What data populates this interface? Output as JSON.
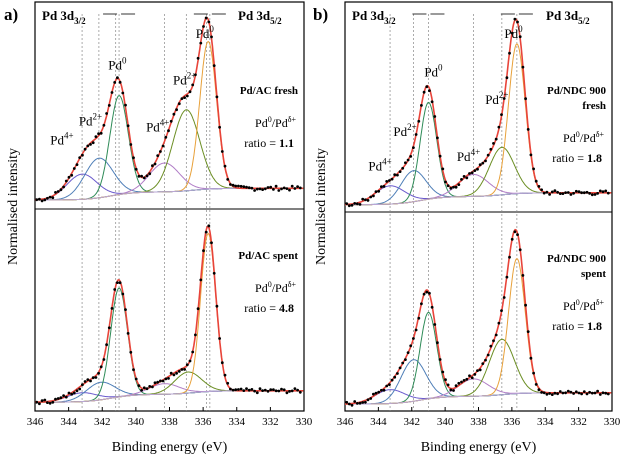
{
  "chart_data": [
    {
      "panel_label": "a)",
      "type": "line",
      "xlabel": "Binding energy (eV)",
      "ylabel": "Normalised intensity",
      "xlim": [
        346,
        330
      ],
      "xticks": [
        "346",
        "344",
        "342",
        "340",
        "338",
        "336",
        "334",
        "332",
        "330"
      ],
      "region_labels": {
        "left_main": "Pd 3d",
        "left_sub": "3/2",
        "right_main": "Pd 3d",
        "right_sub": "5/2"
      },
      "reference_lines_eV": [
        343.2,
        342.2,
        341.2,
        341.0,
        338.3,
        337.0,
        335.8,
        335.6
      ],
      "subplots": [
        {
          "sample": "Pd/AC fresh",
          "sample_lines": [
            "Pd/AC fresh"
          ],
          "ratio_label_main": "Pd",
          "ratio_label_sup1": "0",
          "ratio_label_mid": "/Pd",
          "ratio_label_sup2": "δ+",
          "ratio_word": "ratio = ",
          "ratio_value": "1.1",
          "peak_labels": [
            {
              "base": "Pd",
              "sup": "4+",
              "eV": 344.4
            },
            {
              "base": "Pd",
              "sup": "2+",
              "eV": 342.7
            },
            {
              "base": "Pd",
              "sup": "0",
              "eV": 341.1
            },
            {
              "base": "Pd",
              "sup": "4+",
              "eV": 338.7
            },
            {
              "base": "Pd",
              "sup": "2+",
              "eV": 337.1
            },
            {
              "base": "Pd",
              "sup": "0",
              "eV": 335.9
            }
          ],
          "ylim": [
            0,
            1.15
          ],
          "baseline": 0.05,
          "components": [
            {
              "name": "Pd4+ 3d3/2",
              "color": "#6a5acd",
              "center": 343.2,
              "amp": 0.14,
              "sigma": 0.9
            },
            {
              "name": "Pd2+ 3d3/2",
              "color": "#4f7fb8",
              "center": 342.2,
              "amp": 0.22,
              "sigma": 0.85
            },
            {
              "name": "Pd0 3d3/2",
              "color": "#2e8b57",
              "center": 341.0,
              "amp": 0.55,
              "sigma": 0.55
            },
            {
              "name": "Pd4+ 3d5/2",
              "color": "#b07cc6",
              "center": 338.3,
              "amp": 0.16,
              "sigma": 0.9
            },
            {
              "name": "Pd2+ 3d5/2",
              "color": "#6b8e23",
              "center": 337.0,
              "amp": 0.45,
              "sigma": 0.8
            },
            {
              "name": "Pd0 3d5/2",
              "color": "#e8a13a",
              "center": 335.7,
              "amp": 0.82,
              "sigma": 0.5
            }
          ]
        },
        {
          "sample": "Pd/AC spent",
          "sample_lines": [
            "Pd/AC spent"
          ],
          "ratio_label_main": "Pd",
          "ratio_label_sup1": "0",
          "ratio_label_mid": "/Pd",
          "ratio_label_sup2": "δ+",
          "ratio_word": "ratio = ",
          "ratio_value": "4.8",
          "peak_labels": [],
          "ylim": [
            0,
            1.15
          ],
          "baseline": 0.05,
          "components": [
            {
              "name": "Pd4+ 3d3/2",
              "color": "#6a5acd",
              "center": 343.2,
              "amp": 0.05,
              "sigma": 0.9
            },
            {
              "name": "Pd2+ 3d3/2",
              "color": "#4f7fb8",
              "center": 342.1,
              "amp": 0.1,
              "sigma": 0.85
            },
            {
              "name": "Pd0 3d3/2",
              "color": "#2e8b57",
              "center": 341.0,
              "amp": 0.62,
              "sigma": 0.5
            },
            {
              "name": "Pd4+ 3d5/2",
              "color": "#b07cc6",
              "center": 338.3,
              "amp": 0.06,
              "sigma": 0.9
            },
            {
              "name": "Pd2+ 3d5/2",
              "color": "#6b8e23",
              "center": 336.9,
              "amp": 0.12,
              "sigma": 0.8
            },
            {
              "name": "Pd0 3d5/2",
              "color": "#e8a13a",
              "center": 335.7,
              "amp": 0.9,
              "sigma": 0.45
            }
          ]
        }
      ]
    },
    {
      "panel_label": "b)",
      "type": "line",
      "xlabel": "Binding energy (eV)",
      "ylabel": "Normalised intensity",
      "xlim": [
        346,
        330
      ],
      "xticks": [
        "346",
        "344",
        "342",
        "340",
        "338",
        "336",
        "334",
        "332",
        "330"
      ],
      "region_labels": {
        "left_main": "Pd 3d",
        "left_sub": "3/2",
        "right_main": "Pd 3d",
        "right_sub": "5/2"
      },
      "reference_lines_eV": [
        343.3,
        341.9,
        341.0,
        338.3,
        336.6,
        335.7
      ],
      "subplots": [
        {
          "sample": "Pd/NDC 900 fresh",
          "sample_lines": [
            "Pd/NDC 900",
            "fresh"
          ],
          "ratio_label_main": "Pd",
          "ratio_label_sup1": "0",
          "ratio_label_mid": "/Pd",
          "ratio_label_sup2": "δ+",
          "ratio_word": "ratio = ",
          "ratio_value": "1.8",
          "peak_labels": [
            {
              "base": "Pd",
              "sup": "4+",
              "eV": 343.9
            },
            {
              "base": "Pd",
              "sup": "2+",
              "eV": 342.4
            },
            {
              "base": "Pd",
              "sup": "0",
              "eV": 340.7
            },
            {
              "base": "Pd",
              "sup": "4+",
              "eV": 338.6
            },
            {
              "base": "Pd",
              "sup": "2+",
              "eV": 336.9
            },
            {
              "base": "Pd",
              "sup": "0",
              "eV": 335.9
            }
          ],
          "ylim": [
            0,
            1.15
          ],
          "baseline": 0.04,
          "components": [
            {
              "name": "Pd4+ 3d3/2",
              "color": "#6a5acd",
              "center": 343.3,
              "amp": 0.1,
              "sigma": 0.9
            },
            {
              "name": "Pd2+ 3d3/2",
              "color": "#4f7fb8",
              "center": 341.9,
              "amp": 0.17,
              "sigma": 0.75
            },
            {
              "name": "Pd0 3d3/2",
              "color": "#2e8b57",
              "center": 341.0,
              "amp": 0.53,
              "sigma": 0.5
            },
            {
              "name": "Pd4+ 3d5/2",
              "color": "#b07cc6",
              "center": 338.3,
              "amp": 0.12,
              "sigma": 0.9
            },
            {
              "name": "Pd2+ 3d5/2",
              "color": "#6b8e23",
              "center": 336.6,
              "amp": 0.26,
              "sigma": 0.75
            },
            {
              "name": "Pd0 3d5/2",
              "color": "#e8a13a",
              "center": 335.7,
              "amp": 0.82,
              "sigma": 0.5
            }
          ]
        },
        {
          "sample": "Pd/NDC 900 spent",
          "sample_lines": [
            "Pd/NDC 900",
            "spent"
          ],
          "ratio_label_main": "Pd",
          "ratio_label_sup1": "0",
          "ratio_label_mid": "/Pd",
          "ratio_label_sup2": "δ+",
          "ratio_word": "ratio = ",
          "ratio_value": "1.8",
          "peak_labels": [],
          "ylim": [
            0,
            1.15
          ],
          "baseline": 0.04,
          "components": [
            {
              "name": "Pd4+ 3d3/2",
              "color": "#6a5acd",
              "center": 343.3,
              "amp": 0.08,
              "sigma": 0.9
            },
            {
              "name": "Pd2+ 3d3/2",
              "color": "#4f7fb8",
              "center": 341.9,
              "amp": 0.24,
              "sigma": 0.75
            },
            {
              "name": "Pd0 3d3/2",
              "color": "#2e8b57",
              "center": 341.0,
              "amp": 0.5,
              "sigma": 0.5
            },
            {
              "name": "Pd4+ 3d5/2",
              "color": "#b07cc6",
              "center": 338.3,
              "amp": 0.1,
              "sigma": 0.9
            },
            {
              "name": "Pd2+ 3d5/2",
              "color": "#6b8e23",
              "center": 336.6,
              "amp": 0.32,
              "sigma": 0.75
            },
            {
              "name": "Pd0 3d5/2",
              "color": "#e8a13a",
              "center": 335.7,
              "amp": 0.78,
              "sigma": 0.5
            }
          ]
        }
      ]
    }
  ]
}
